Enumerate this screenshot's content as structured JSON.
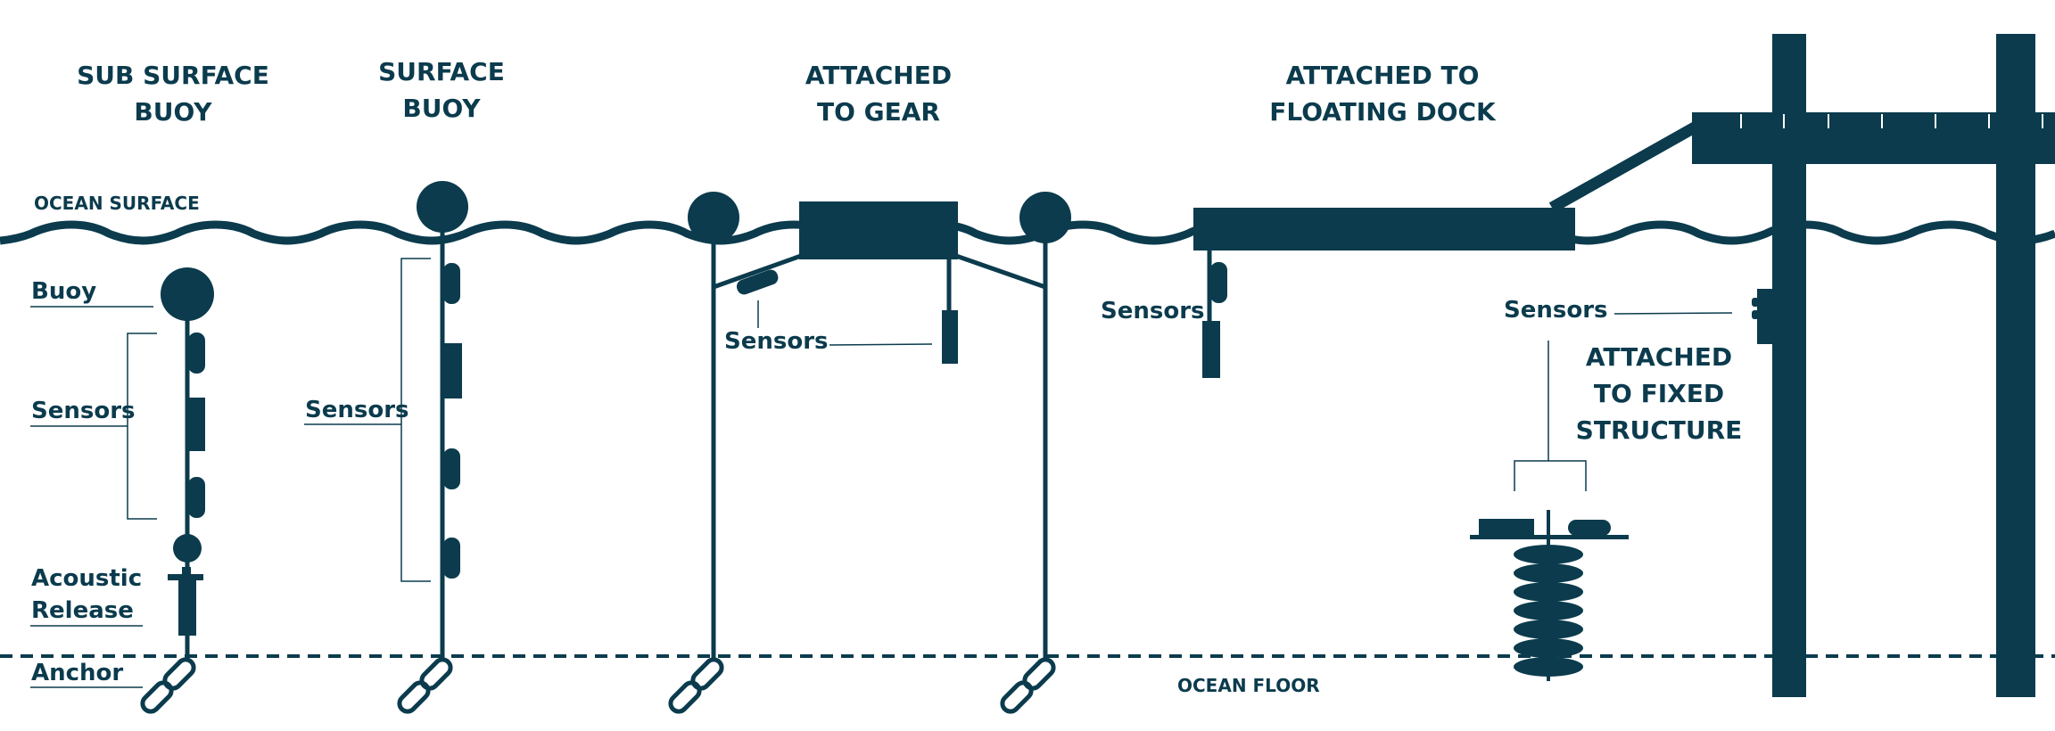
{
  "headings": {
    "sub_surface_buoy": [
      "SUB SURFACE",
      "BUOY"
    ],
    "surface_buoy": [
      "SURFACE",
      "BUOY"
    ],
    "attached_to_gear": [
      "ATTACHED",
      "TO GEAR"
    ],
    "attached_to_floating_dock": [
      "ATTACHED TO",
      "FLOATING DOCK"
    ],
    "attached_to_fixed_structure": [
      "ATTACHED",
      "TO FIXED",
      "STRUCTURE"
    ]
  },
  "labels": {
    "ocean_surface": "OCEAN SURFACE",
    "ocean_floor": "OCEAN FLOOR",
    "buoy": "Buoy",
    "sensors": "Sensors",
    "acoustic_release": [
      "Acoustic",
      "Release"
    ],
    "anchor": "Anchor"
  },
  "colors": {
    "primary": "#0b3b4d",
    "background": "#ffffff"
  }
}
